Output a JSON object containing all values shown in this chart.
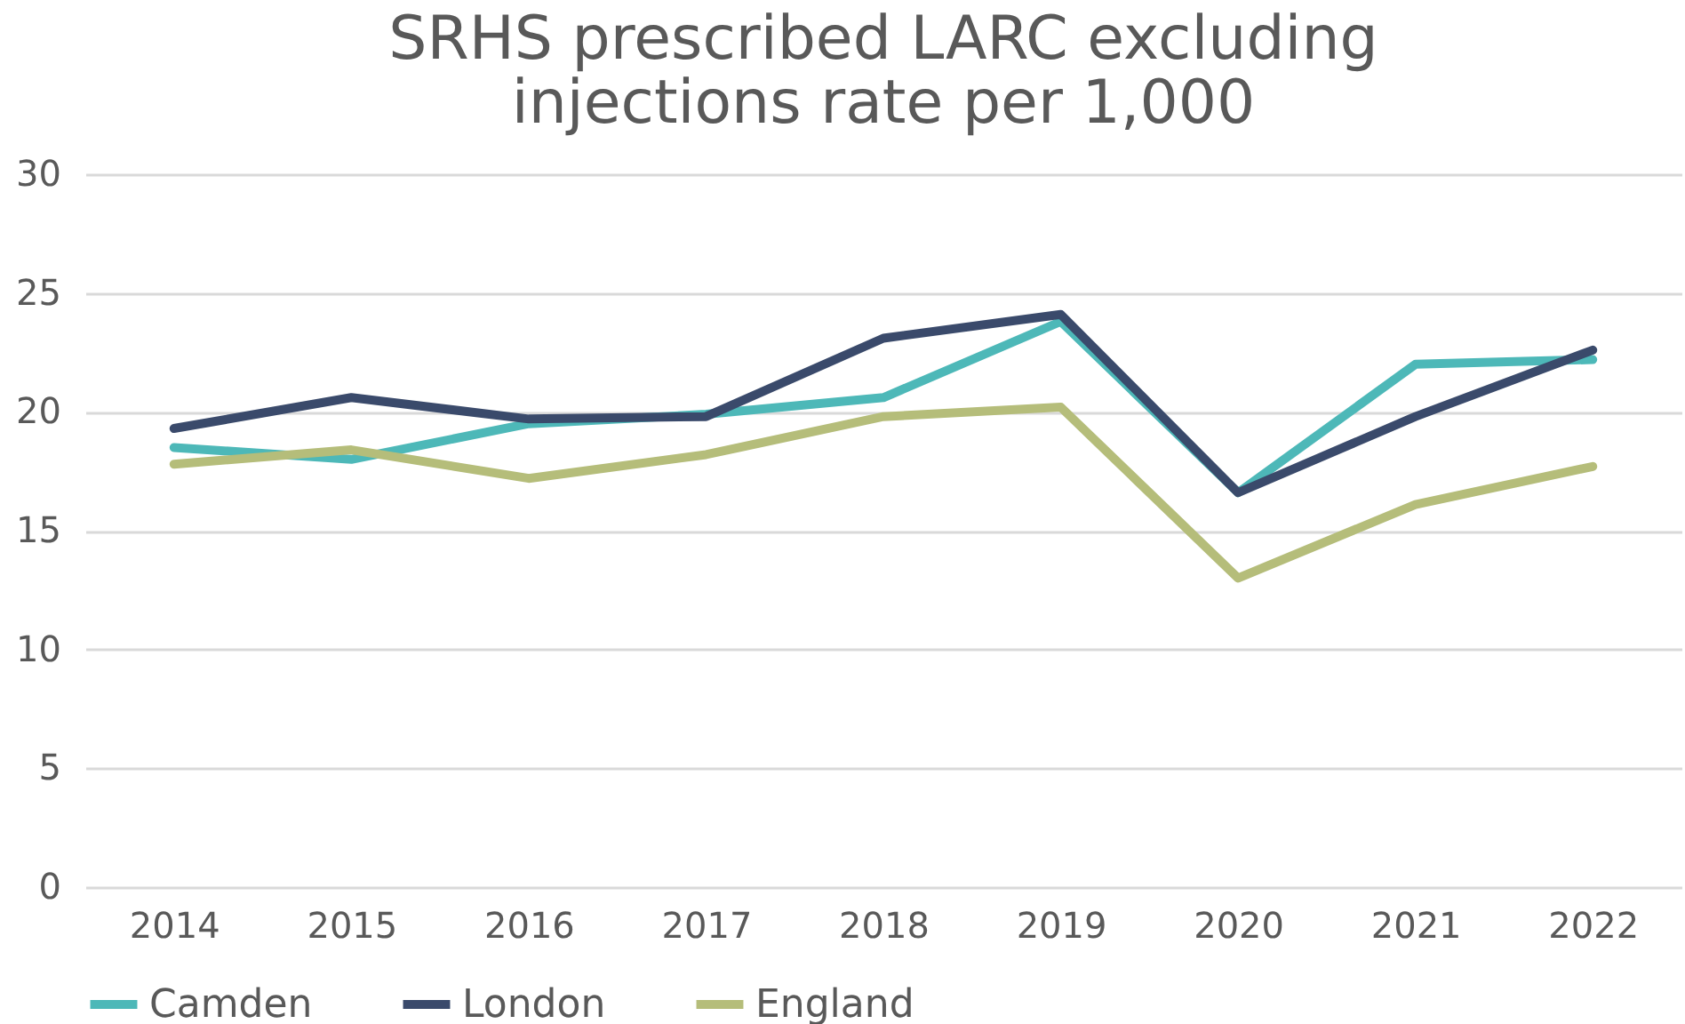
{
  "chart_data": {
    "type": "line",
    "title": "SRHS prescribed LARC excluding injections rate per 1,000",
    "categories": [
      "2014",
      "2015",
      "2016",
      "2017",
      "2018",
      "2019",
      "2020",
      "2021",
      "2022"
    ],
    "series": [
      {
        "name": "Camden",
        "color": "#4db8b8",
        "values": [
          18.5,
          18.0,
          19.5,
          19.9,
          20.6,
          23.8,
          16.6,
          22.0,
          22.2
        ]
      },
      {
        "name": "London",
        "color": "#3a4a6b",
        "values": [
          19.3,
          20.6,
          19.7,
          19.8,
          23.1,
          24.1,
          16.6,
          19.8,
          22.6
        ]
      },
      {
        "name": "England",
        "color": "#b5bd7a",
        "values": [
          17.8,
          18.4,
          17.2,
          18.2,
          19.8,
          20.2,
          13.0,
          16.1,
          17.7
        ]
      }
    ],
    "ylim": [
      0,
      30
    ],
    "yticks": [
      0,
      5,
      10,
      15,
      20,
      25,
      30
    ],
    "grid": "y",
    "legend": "bottom",
    "marker": "none",
    "line_style": "solid"
  }
}
